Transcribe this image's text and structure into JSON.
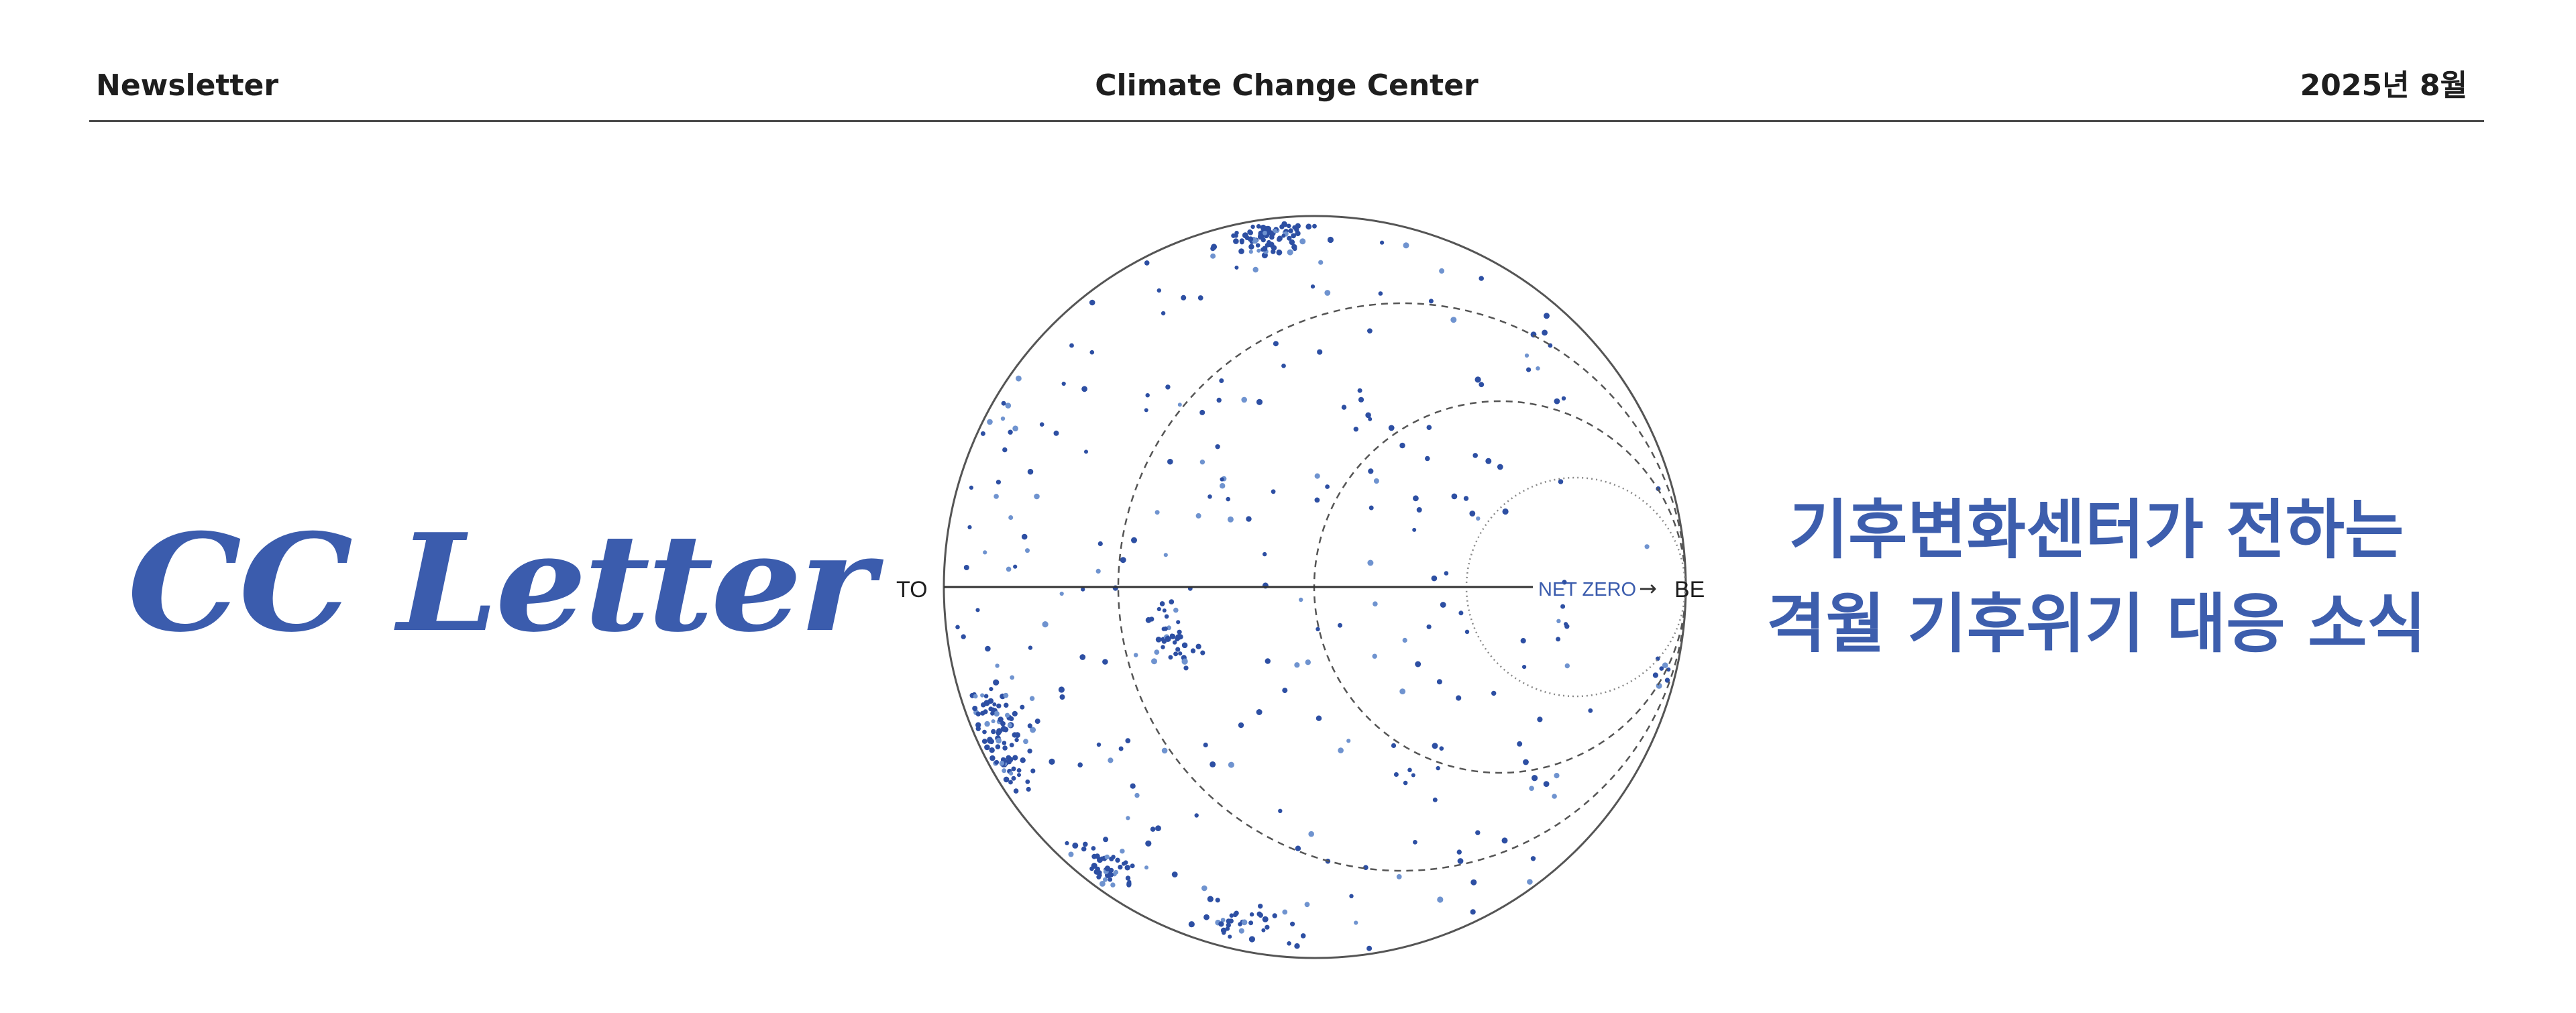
{
  "header": {
    "left": "Newsletter",
    "center": "Climate Change Center",
    "right": "2025년 8월"
  },
  "logo": {
    "text": "CC Letter"
  },
  "diagram": {
    "left_label": "TO",
    "right_label": "BE",
    "center_label": "NET ZERO",
    "arrow": "→"
  },
  "tagline": {
    "line1": "기후변화센터가 전하는",
    "line2": "격월 기후위기 대응 소식"
  },
  "colors": {
    "accent": "#3b5cad",
    "dot_dark": "#2d4fa3",
    "dot_light": "#6f93cf",
    "rule": "#4a4a4a"
  }
}
